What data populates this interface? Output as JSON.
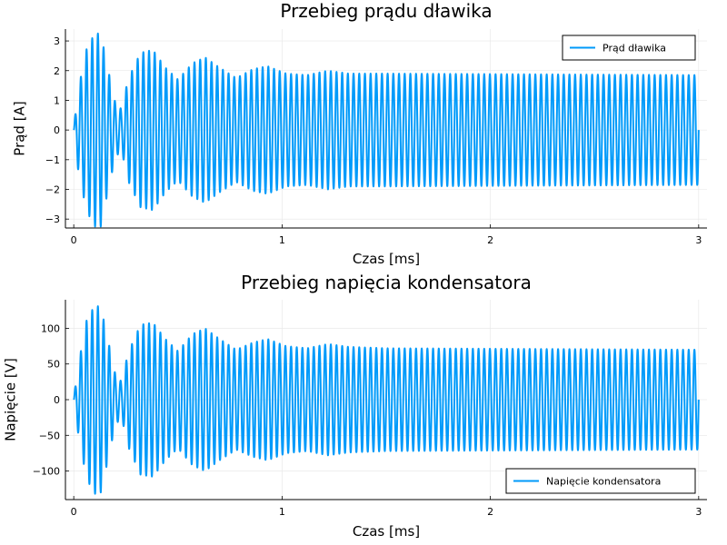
{
  "chart_data": [
    {
      "type": "line",
      "title": "Przebieg prądu dławika",
      "xlabel": "Czas [ms]",
      "ylabel": "Prąd [A]",
      "xlim": [
        -0.04,
        3.04
      ],
      "ylim": [
        -3.3,
        3.4
      ],
      "xticks": [
        0,
        1,
        2,
        3
      ],
      "xtick_labels": [
        "0",
        "1",
        "2",
        "3"
      ],
      "yticks": [
        -3,
        -2,
        -1,
        0,
        1,
        2,
        3
      ],
      "ytick_labels": [
        "−3",
        "−2",
        "−1",
        "0",
        "1",
        "2",
        "3"
      ],
      "grid": true,
      "legend_position": "top-right",
      "series": [
        {
          "name": "Prąd dławika",
          "color": "#009AFA",
          "sampled": {
            "x_start": 0,
            "x_end": 3.0,
            "cycles": 110,
            "start_phase": "zero",
            "amplitude_envelope": [
              [
                0.0,
                0.05
              ],
              [
                0.02,
                1.3
              ],
              [
                0.06,
                2.7
              ],
              [
                0.1,
                3.25
              ],
              [
                0.13,
                3.25
              ],
              [
                0.16,
                2.2
              ],
              [
                0.2,
                0.9
              ],
              [
                0.23,
                0.7
              ],
              [
                0.26,
                1.7
              ],
              [
                0.32,
                2.6
              ],
              [
                0.38,
                2.7
              ],
              [
                0.44,
                2.1
              ],
              [
                0.5,
                1.7
              ],
              [
                0.57,
                2.25
              ],
              [
                0.63,
                2.45
              ],
              [
                0.7,
                2.1
              ],
              [
                0.78,
                1.75
              ],
              [
                0.86,
                2.05
              ],
              [
                0.93,
                2.15
              ],
              [
                1.02,
                1.9
              ],
              [
                1.12,
                1.85
              ],
              [
                1.22,
                2.0
              ],
              [
                1.32,
                1.9
              ],
              [
                1.5,
                1.9
              ],
              [
                3.0,
                1.85
              ]
            ]
          }
        }
      ]
    },
    {
      "type": "line",
      "title": "Przebieg napięcia kondensatora",
      "xlabel": "Czas [ms]",
      "ylabel": "Napięcie [V]",
      "xlim": [
        -0.04,
        3.04
      ],
      "ylim": [
        -140,
        140
      ],
      "xticks": [
        0,
        1,
        2,
        3
      ],
      "xtick_labels": [
        "0",
        "1",
        "2",
        "3"
      ],
      "yticks": [
        -100,
        -50,
        0,
        50,
        100
      ],
      "ytick_labels": [
        "−100",
        "−50",
        "0",
        "50",
        "100"
      ],
      "grid": true,
      "legend_position": "bottom-right",
      "series": [
        {
          "name": "Napięcie kondensatora",
          "color": "#009AFA",
          "sampled": {
            "x_start": 0,
            "x_end": 3.0,
            "cycles": 110,
            "start_phase": "zero",
            "amplitude_envelope": [
              [
                0.0,
                2
              ],
              [
                0.02,
                45
              ],
              [
                0.06,
                110
              ],
              [
                0.1,
                132
              ],
              [
                0.13,
                130
              ],
              [
                0.16,
                90
              ],
              [
                0.2,
                35
              ],
              [
                0.23,
                25
              ],
              [
                0.26,
                65
              ],
              [
                0.32,
                105
              ],
              [
                0.38,
                108
              ],
              [
                0.44,
                85
              ],
              [
                0.5,
                68
              ],
              [
                0.57,
                92
              ],
              [
                0.63,
                100
              ],
              [
                0.7,
                85
              ],
              [
                0.78,
                70
              ],
              [
                0.86,
                80
              ],
              [
                0.93,
                85
              ],
              [
                1.02,
                75
              ],
              [
                1.12,
                72
              ],
              [
                1.22,
                78
              ],
              [
                1.32,
                74
              ],
              [
                1.5,
                72
              ],
              [
                3.0,
                70
              ]
            ]
          }
        }
      ]
    }
  ]
}
